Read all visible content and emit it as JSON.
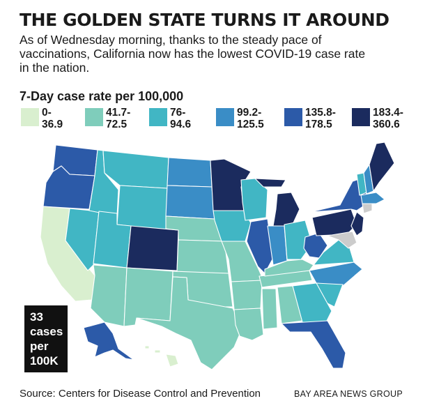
{
  "header": {
    "title": "THE GOLDEN STATE TURNS IT AROUND",
    "subtitle": "As of Wednesday morning, thanks to the steady pace of vaccinations, California now has the lowest COVID-19 case rate in the nation."
  },
  "legend": {
    "title": "7-Day case rate per 100,000",
    "items": [
      {
        "line1": "0-",
        "line2": "36.9",
        "color": "#d9efcf"
      },
      {
        "line1": "41.7-",
        "line2": "72.5",
        "color": "#7fcdbb"
      },
      {
        "line1": "76-",
        "line2": "94.6",
        "color": "#41b6c4"
      },
      {
        "line1": "99.2-",
        "line2": "125.5",
        "color": "#3a8dc6"
      },
      {
        "line1": "135.8-",
        "line2": "178.5",
        "color": "#2c5aa8"
      },
      {
        "line1": "183.4-",
        "line2": "360.6",
        "color": "#1b2b5e"
      }
    ]
  },
  "state_levels": {
    "CA": 0,
    "HI": 0,
    "AZ": 1,
    "NM": 1,
    "TX": 1,
    "OK": 1,
    "KS": 1,
    "NE": 1,
    "MO": 1,
    "AR": 1,
    "LA": 1,
    "MS": 1,
    "AL": 1,
    "TN": 1,
    "KY": 1,
    "ME_none": 1,
    "MT": 2,
    "WY": 2,
    "ID": 2,
    "NV": 2,
    "UT": 2,
    "WI": 2,
    "IA": 2,
    "OH": 2,
    "VT": 2,
    "VA": 2,
    "GA": 2,
    "SC": 2,
    "ND": 3,
    "SD": 3,
    "IN": 3,
    "NC": 3,
    "NH": 3,
    "MA": 3,
    "KY2": 3,
    "WA": 4,
    "OR": 4,
    "IL": 4,
    "FL": 4,
    "AK": 4,
    "NY": 4,
    "WV": 4,
    "CO": 5,
    "MN": 5,
    "MI": 5,
    "PA": 5,
    "NJ": 5,
    "ME": 5
  },
  "callout": {
    "line1": "33",
    "line2": "cases",
    "line3": "per",
    "line4": "100K"
  },
  "footer": {
    "source": "Source: Centers for Disease Control and Prevention",
    "credit": "BAY AREA NEWS GROUP"
  }
}
